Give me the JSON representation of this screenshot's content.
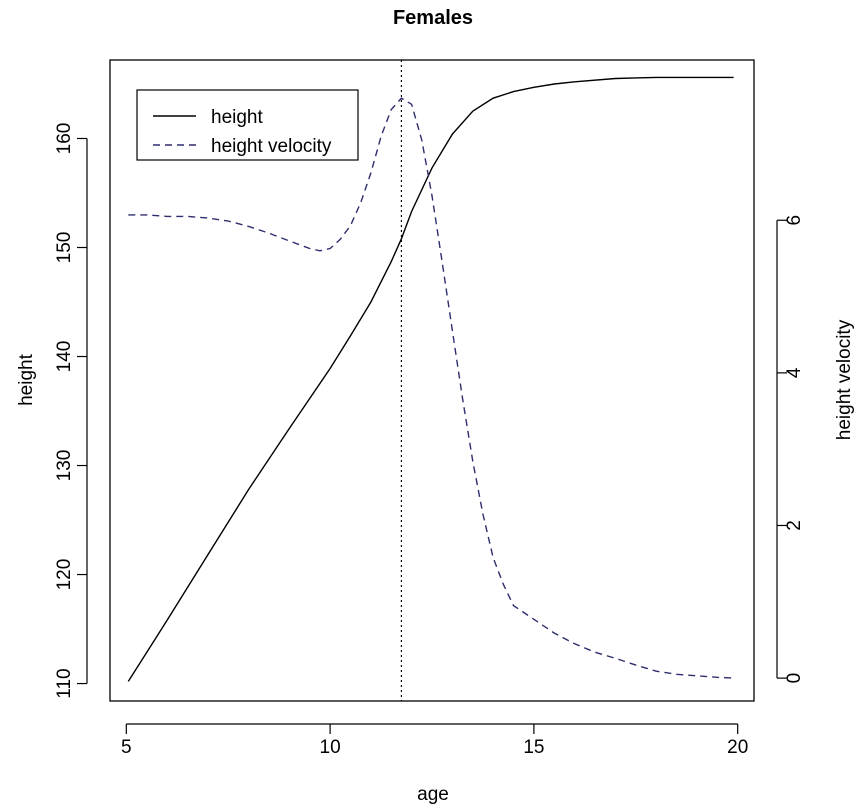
{
  "chart_data": {
    "type": "line",
    "title": "Females",
    "xlabel": "age",
    "ylabel": "height",
    "ylabel_right": "height velocity",
    "xlim": [
      4.6,
      20.4
    ],
    "ylim": [
      108.4,
      167.2
    ],
    "ylim_right": [
      -0.3,
      8.1
    ],
    "x_ticks": [
      5,
      10,
      15,
      20
    ],
    "y_ticks": [
      110,
      120,
      130,
      140,
      150,
      160
    ],
    "y_ticks_right": [
      0,
      2,
      4,
      6
    ],
    "grid": false,
    "legend_position": "top-left",
    "vertical_line": {
      "x": 11.75,
      "style": "dotted"
    },
    "series": [
      {
        "name": "height",
        "axis": "left",
        "style": "solid",
        "color": "#000000",
        "x": [
          5.05,
          6.0,
          7.0,
          8.0,
          9.0,
          10.0,
          10.5,
          11.0,
          11.5,
          11.75,
          12.0,
          12.5,
          13.0,
          13.5,
          14.0,
          14.5,
          15.0,
          15.5,
          16.0,
          17.0,
          18.0,
          19.0,
          19.9
        ],
        "y": [
          110.2,
          115.8,
          121.8,
          127.8,
          133.4,
          138.9,
          141.9,
          145.0,
          148.7,
          150.8,
          153.3,
          157.3,
          160.4,
          162.5,
          163.7,
          164.3,
          164.7,
          165.0,
          165.2,
          165.5,
          165.6,
          165.6,
          165.6
        ]
      },
      {
        "name": "height velocity",
        "axis": "right",
        "style": "dashed",
        "color": "#2e2e6e",
        "x": [
          5.05,
          5.5,
          6.0,
          6.5,
          7.0,
          7.5,
          8.0,
          8.5,
          9.0,
          9.5,
          9.75,
          10.0,
          10.25,
          10.5,
          10.75,
          11.0,
          11.25,
          11.5,
          11.75,
          12.0,
          12.25,
          12.5,
          12.75,
          13.0,
          13.25,
          13.5,
          13.75,
          14.0,
          14.25,
          14.5,
          15.0,
          15.5,
          16.0,
          16.5,
          17.0,
          17.5,
          18.0,
          18.5,
          19.0,
          19.5,
          19.9
        ],
        "y": [
          6.07,
          6.07,
          6.05,
          6.05,
          6.03,
          5.99,
          5.92,
          5.83,
          5.73,
          5.63,
          5.6,
          5.63,
          5.75,
          5.93,
          6.23,
          6.62,
          7.1,
          7.45,
          7.6,
          7.52,
          7.05,
          6.32,
          5.45,
          4.55,
          3.66,
          2.84,
          2.15,
          1.58,
          1.23,
          0.95,
          0.77,
          0.59,
          0.45,
          0.34,
          0.26,
          0.17,
          0.09,
          0.05,
          0.03,
          0.01,
          0.0
        ]
      }
    ]
  }
}
